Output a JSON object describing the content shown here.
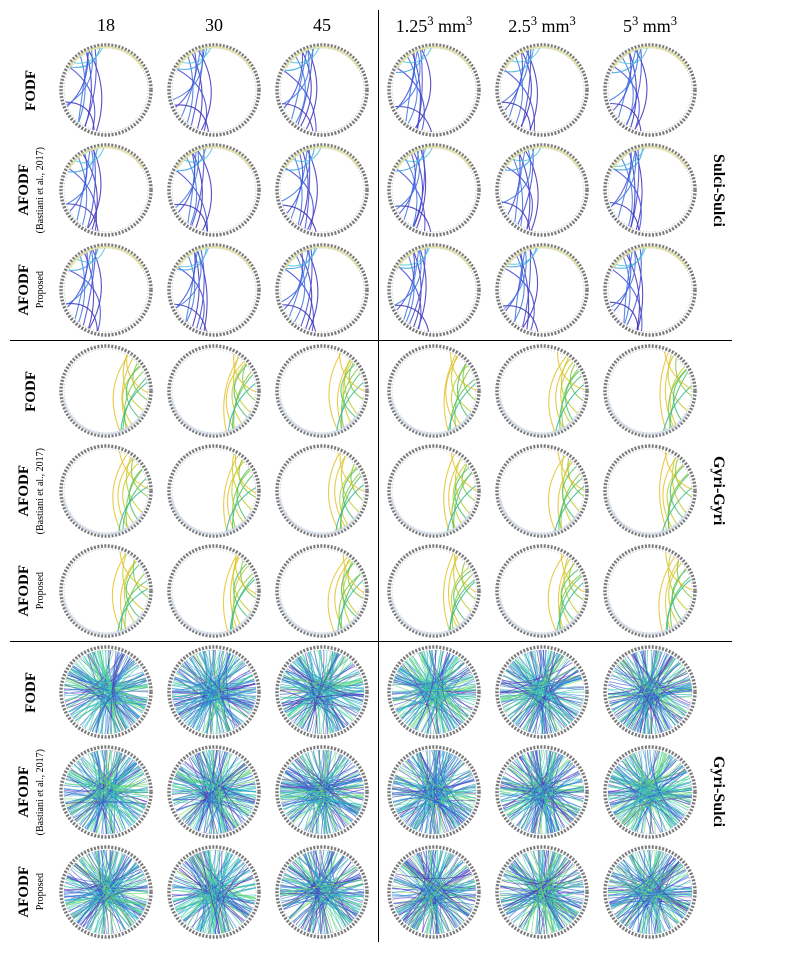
{
  "columns_left": [
    "18",
    "30",
    "45"
  ],
  "columns_right_html": [
    "1.25³ mm³",
    "2.5³ mm³",
    "5³ mm³"
  ],
  "row_methods": [
    {
      "label": "FODF",
      "sublabel": ""
    },
    {
      "label": "AFODF",
      "sublabel": "(Bastiani et al., 2017)"
    },
    {
      "label": "AFODF",
      "sublabel": "Proposed"
    }
  ],
  "sections": [
    {
      "name": "Sulci-Sulci",
      "kind": "arcs_bottom"
    },
    {
      "name": "Gyri-Gyri",
      "kind": "arcs_top"
    },
    {
      "name": "Gyri-Sulci",
      "kind": "radial"
    }
  ],
  "cell_size": 100,
  "circle_radius": 45,
  "grid_row_height": 100,
  "colors": {
    "ring_stroke": "#7a7a7a",
    "ring_fill": "#ffffff",
    "palette_sulci": [
      "#3b2fb5",
      "#4047d6",
      "#3d74e0",
      "#3da5e0",
      "#56c7dd"
    ],
    "palette_gyri": [
      "#e6c22d",
      "#c6cc2e",
      "#86c940",
      "#4fc26b",
      "#2fb899"
    ],
    "palette_mix": [
      "#5a2fb5",
      "#3b54d6",
      "#2f89d6",
      "#2fb8c4",
      "#3fd4a9",
      "#6ad96a"
    ],
    "faint_ring_arc": "#c7d4e6"
  },
  "sulci_arcs": [
    {
      "a0": 200,
      "a1": 340,
      "h": 0.7,
      "c": 0
    },
    {
      "a0": 205,
      "a1": 330,
      "h": 0.55,
      "c": 0
    },
    {
      "a0": 195,
      "a1": 300,
      "h": 0.6,
      "c": 1
    },
    {
      "a0": 210,
      "a1": 345,
      "h": 0.48,
      "c": 1
    },
    {
      "a0": 215,
      "a1": 320,
      "h": 0.45,
      "c": 2
    },
    {
      "a0": 225,
      "a1": 338,
      "h": 0.3,
      "c": 2
    },
    {
      "a0": 300,
      "a1": 350,
      "h": 0.3,
      "c": 3
    },
    {
      "a0": 310,
      "a1": 355,
      "h": 0.25,
      "c": 4
    },
    {
      "a0": 190,
      "a1": 250,
      "h": 0.35,
      "c": 0
    },
    {
      "a0": 240,
      "a1": 330,
      "h": 0.4,
      "c": 1
    },
    {
      "a0": 250,
      "a1": 340,
      "h": 0.5,
      "c": 2
    }
  ],
  "gyri_arcs": [
    {
      "a0": 30,
      "a1": 160,
      "h": 0.65,
      "c": 0
    },
    {
      "a0": 40,
      "a1": 150,
      "h": 0.55,
      "c": 0
    },
    {
      "a0": 50,
      "a1": 140,
      "h": 0.5,
      "c": 1
    },
    {
      "a0": 35,
      "a1": 120,
      "h": 0.45,
      "c": 1
    },
    {
      "a0": 60,
      "a1": 150,
      "h": 0.4,
      "c": 2
    },
    {
      "a0": 70,
      "a1": 155,
      "h": 0.35,
      "c": 3
    },
    {
      "a0": 45,
      "a1": 100,
      "h": 0.3,
      "c": 2
    },
    {
      "a0": 80,
      "a1": 160,
      "h": 0.3,
      "c": 4
    },
    {
      "a0": 25,
      "a1": 90,
      "h": 0.3,
      "c": 0
    },
    {
      "a0": 55,
      "a1": 130,
      "h": 0.48,
      "c": 3
    }
  ],
  "radial_count": 120
}
